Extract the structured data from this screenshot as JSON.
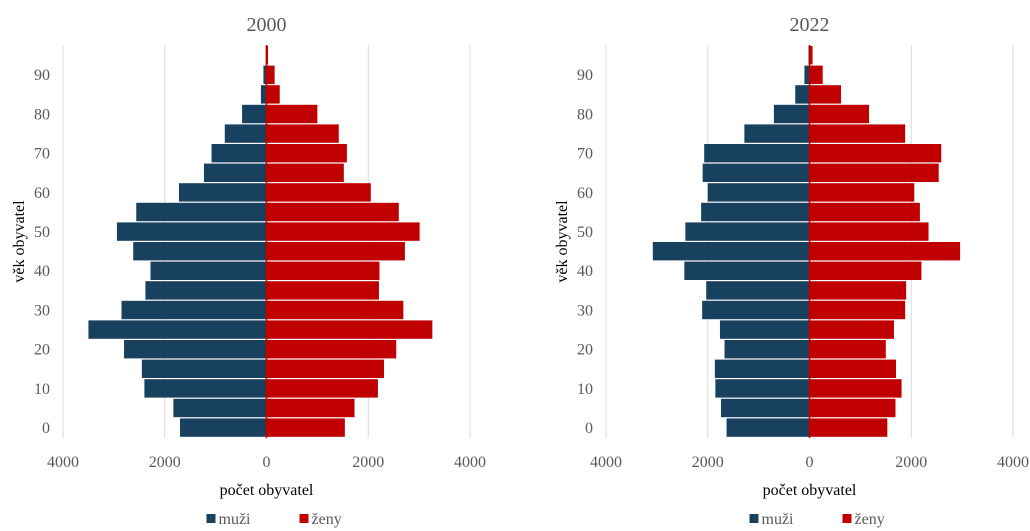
{
  "chart_data": [
    {
      "type": "bar",
      "orientation": "horizontal",
      "title": "2000",
      "xlabel": "počet obyvatel",
      "ylabel": "věk obyvatel",
      "xlim": [
        -4000,
        4000
      ],
      "xticks": [
        -4000,
        -2000,
        0,
        2000,
        4000
      ],
      "xtick_labels": [
        "4000",
        "2000",
        "0",
        "2000",
        "4000"
      ],
      "yticks": [
        0,
        10,
        20,
        30,
        40,
        50,
        60,
        70,
        80,
        90
      ],
      "grid": "vertical",
      "legend_position": "bottom",
      "categories": [
        "0",
        "5",
        "10",
        "15",
        "20",
        "25",
        "30",
        "35",
        "40",
        "45",
        "50",
        "55",
        "60",
        "65",
        "70",
        "75",
        "80",
        "85",
        "90",
        "95"
      ],
      "series": [
        {
          "name": "muži",
          "color": "#17415f",
          "values": [
            1700,
            1830,
            2400,
            2450,
            2800,
            3500,
            2850,
            2380,
            2280,
            2620,
            2940,
            2560,
            1720,
            1230,
            1080,
            820,
            480,
            110,
            60,
            15
          ]
        },
        {
          "name": "ženy",
          "color": "#c00000",
          "values": [
            1540,
            1730,
            2190,
            2310,
            2550,
            3260,
            2690,
            2210,
            2220,
            2720,
            3010,
            2600,
            2050,
            1520,
            1580,
            1420,
            1000,
            260,
            160,
            30
          ]
        }
      ]
    },
    {
      "type": "bar",
      "orientation": "horizontal",
      "title": "2022",
      "xlabel": "počet obyvatel",
      "ylabel": "věk obyvatel",
      "xlim": [
        -4000,
        4000
      ],
      "xticks": [
        -4000,
        -2000,
        0,
        2000,
        4000
      ],
      "xtick_labels": [
        "4000",
        "2000",
        "0",
        "2000",
        "4000"
      ],
      "yticks": [
        0,
        10,
        20,
        30,
        40,
        50,
        60,
        70,
        80,
        90
      ],
      "grid": "vertical",
      "legend_position": "bottom",
      "categories": [
        "0",
        "5",
        "10",
        "15",
        "20",
        "25",
        "30",
        "35",
        "40",
        "45",
        "50",
        "55",
        "60",
        "65",
        "70",
        "75",
        "80",
        "85",
        "90",
        "95"
      ],
      "series": [
        {
          "name": "muži",
          "color": "#17415f",
          "values": [
            1630,
            1740,
            1850,
            1860,
            1670,
            1760,
            2110,
            2030,
            2460,
            3080,
            2440,
            2130,
            2000,
            2100,
            2070,
            1280,
            700,
            280,
            100,
            20
          ]
        },
        {
          "name": "ženy",
          "color": "#c00000",
          "values": [
            1530,
            1690,
            1810,
            1700,
            1500,
            1660,
            1880,
            1900,
            2200,
            2960,
            2340,
            2170,
            2060,
            2540,
            2590,
            1880,
            1170,
            620,
            260,
            60
          ]
        }
      ]
    }
  ]
}
